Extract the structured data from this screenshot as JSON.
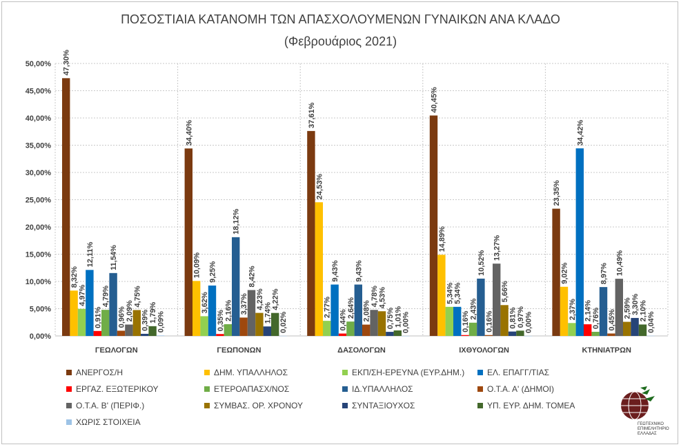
{
  "chart_data": {
    "type": "bar",
    "title": "ΠΟΣΟΣΤΙΑΙΑ ΚΑΤΑΝΟΜΗ ΤΩΝ ΑΠΑΣΧΟΛΟΥΜΕΝΩΝ ΓΥΝΑΙΚΩΝ ΑΝΑ ΚΛΑΔΟ",
    "subtitle": "(Φεβρουάριος 2021)",
    "xlabel": "",
    "ylabel": "",
    "ylim": [
      0,
      50
    ],
    "yticks": [
      "0,00%",
      "5,00%",
      "10,00%",
      "15,00%",
      "20,00%",
      "25,00%",
      "30,00%",
      "35,00%",
      "40,00%",
      "45,00%",
      "50,00%"
    ],
    "grid": true,
    "legend_position": "bottom",
    "categories": [
      "ΓΕΩΛΟΓΩΝ",
      "ΓΕΩΠΟΝΩΝ",
      "ΔΑΣΟΛΟΓΩΝ",
      "ΙΧΘΥΟΛΟΓΩΝ",
      "ΚΤΗΝΙΑΤΡΩΝ"
    ],
    "series": [
      {
        "name": "ΑΝΕΡΓΟΣ/Η",
        "color": "#7b3a10",
        "values": [
          47.3,
          34.4,
          37.61,
          40.45,
          23.35
        ]
      },
      {
        "name": "ΔΗΜ. ΥΠΑΛΛΗΛΟΣ",
        "color": "#ffc000",
        "values": [
          8.32,
          10.09,
          24.53,
          14.89,
          9.02
        ]
      },
      {
        "name": "ΕΚΠ/ΣΗ-ΕΡΕΥΝΑ (ΕΥΡ.ΔΗΜ.)",
        "color": "#92d050",
        "values": [
          4.97,
          3.62,
          2.77,
          5.34,
          2.37
        ]
      },
      {
        "name": "ΕΛ. ΕΠΑΓΓ/ΤΙΑΣ",
        "color": "#0070c0",
        "values": [
          12.11,
          9.25,
          9.43,
          5.34,
          34.42
        ]
      },
      {
        "name": "ΕΡΓΑΖ. ΕΞΩΤΕΡΙΚΟΥ",
        "color": "#ff0000",
        "values": [
          0.91,
          0.35,
          0.44,
          0.16,
          2.14
        ]
      },
      {
        "name": "ΕΤΕΡΟΑΠΑΣΧ/ΝΟΣ",
        "color": "#70ad47",
        "values": [
          4.79,
          2.16,
          2.64,
          2.43,
          0.76
        ]
      },
      {
        "name": "ΙΔ.ΥΠΑΛΛΗΛΟΣ",
        "color": "#255e91",
        "values": [
          11.54,
          18.12,
          9.43,
          10.52,
          8.97
        ]
      },
      {
        "name": "Ο.Τ.Α. Α'  (ΔΗΜΟΙ)",
        "color": "#9e480e",
        "values": [
          0.96,
          3.37,
          2.08,
          0.16,
          0.45
        ]
      },
      {
        "name": "Ο.Τ.Α. Β' (ΠΕΡΙΦ.)",
        "color": "#636363",
        "values": [
          2.09,
          8.42,
          4.78,
          13.27,
          10.49
        ]
      },
      {
        "name": "ΣΥΜΒΑΣ. ΟΡ. ΧΡΟΝΟΥ",
        "color": "#997300",
        "values": [
          4.75,
          4.23,
          4.53,
          5.66,
          2.59
        ]
      },
      {
        "name": "ΣΥΝΤΑΞΙΟΥΧΟΣ",
        "color": "#264478",
        "values": [
          0.39,
          1.74,
          0.75,
          0.81,
          3.3
        ]
      },
      {
        "name": "ΥΠ. ΕΥΡ. ΔΗΜ. ΤΟΜΕΑ",
        "color": "#43682b",
        "values": [
          1.79,
          4.22,
          1.01,
          0.97,
          2.1
        ]
      },
      {
        "name": "ΧΩΡΙΣ ΣΤΟΙΧΕΙΑ",
        "color": "#9dc3e6",
        "values": [
          0.09,
          0.02,
          0.0,
          0.0,
          0.04
        ]
      }
    ]
  },
  "logo": {
    "text": "ΓΕΩΤΕΧΝΙΚΟ ΕΠΙΜΕΛΗΤΗΡΙΟ ΕΛΛΑΔΑΣ"
  }
}
